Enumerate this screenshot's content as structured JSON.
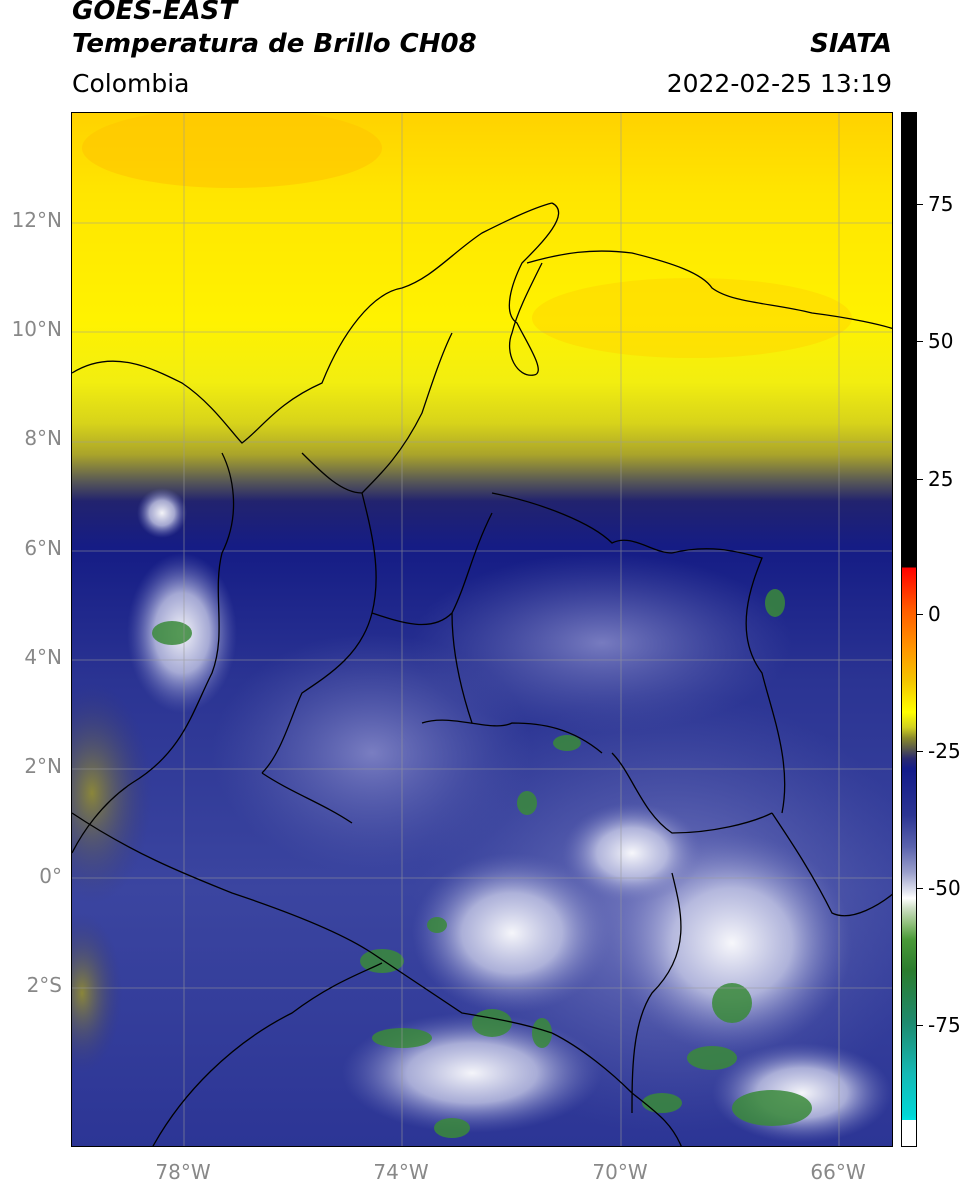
{
  "header": {
    "title_line1": "GOES-EAST",
    "title_line2": "Temperatura de Brillo CH08",
    "source": "SIATA",
    "region": "Colombia",
    "timestamp": "2022-02-25 13:19"
  },
  "axes": {
    "lat_labels": [
      "12°N",
      "10°N",
      "8°N",
      "6°N",
      "4°N",
      "2°N",
      "0°",
      "2°S"
    ],
    "lon_labels": [
      "78°W",
      "74°W",
      "70°W",
      "66°W"
    ]
  },
  "colorbar": {
    "labels": [
      "75",
      "50",
      "25",
      "0",
      "-25",
      "-50",
      "-75"
    ]
  },
  "colors": {
    "cold_white": "#ffffff",
    "deep_cold_green": "#3a8a3a",
    "mid_blue": "#2a3290",
    "warm_yellow": "#ffff00",
    "hot_orange": "#ffb000"
  }
}
